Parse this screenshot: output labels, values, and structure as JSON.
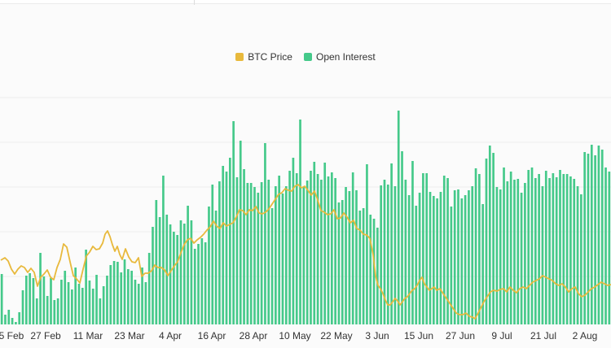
{
  "chart_data": {
    "type": "bar+line",
    "legend": [
      {
        "label": "BTC Price",
        "color": "#e8b93c"
      },
      {
        "label": "Open Interest",
        "color": "#45c98a"
      }
    ],
    "x_tick_labels": [
      "5 Feb",
      "27 Feb",
      "11 Mar",
      "23 Mar",
      "4 Apr",
      "16 Apr",
      "28 Apr",
      "10 May",
      "22 May",
      "3 Jun",
      "15 Jun",
      "27 Jun",
      "9 Jul",
      "21 Jul",
      "2 Aug"
    ],
    "series": [
      {
        "name": "Open Interest",
        "kind": "bar",
        "color": "#45c98a",
        "values": [
          62,
          12,
          18,
          8,
          3,
          15,
          42,
          60,
          63,
          57,
          32,
          88,
          59,
          35,
          57,
          30,
          32,
          55,
          66,
          52,
          43,
          70,
          50,
          45,
          92,
          54,
          44,
          61,
          32,
          47,
          60,
          73,
          78,
          77,
          64,
          80,
          68,
          66,
          55,
          50,
          70,
          52,
          88,
          120,
          153,
          132,
          183,
          135,
          123,
          114,
          110,
          128,
          124,
          146,
          128,
          93,
          99,
          106,
          101,
          145,
          172,
          140,
          176,
          195,
          188,
          205,
          250,
          181,
          226,
          191,
          174,
          174,
          169,
          162,
          175,
          223,
          178,
          143,
          170,
          183,
          161,
          170,
          189,
          205,
          186,
          252,
          169,
          177,
          189,
          200,
          185,
          178,
          199,
          182,
          187,
          180,
          150,
          153,
          169,
          164,
          187,
          165,
          140,
          143,
          197,
          135,
          130,
          119,
          171,
          178,
          172,
          198,
          170,
          263,
          213,
          178,
          159,
          201,
          146,
          162,
          186,
          186,
          163,
          158,
          155,
          163,
          183,
          180,
          145,
          165,
          166,
          155,
          159,
          165,
          170,
          192,
          185,
          148,
          204,
          220,
          211,
          169,
          166,
          193,
          176,
          188,
          178,
          179,
          162,
          174,
          190,
          193,
          180,
          185,
          170,
          189,
          180,
          186,
          181,
          190,
          185,
          185,
          182,
          179,
          170,
          160,
          212,
          210,
          221,
          208,
          220,
          215,
          193,
          188
        ]
      },
      {
        "name": "BTC Price",
        "kind": "line",
        "color": "#e8b93c",
        "points": [
          [
            1,
            79
          ],
          [
            6,
            82
          ],
          [
            10,
            78
          ],
          [
            14,
            68
          ],
          [
            18,
            62
          ],
          [
            22,
            68
          ],
          [
            26,
            72
          ],
          [
            30,
            70
          ],
          [
            34,
            64
          ],
          [
            38,
            69
          ],
          [
            42,
            64
          ],
          [
            46,
            47
          ],
          [
            50,
            58
          ],
          [
            54,
            62
          ],
          [
            58,
            67
          ],
          [
            62,
            58
          ],
          [
            66,
            55
          ],
          [
            70,
            70
          ],
          [
            74,
            80
          ],
          [
            78,
            99
          ],
          [
            82,
            95
          ],
          [
            86,
            77
          ],
          [
            90,
            60
          ],
          [
            94,
            56
          ],
          [
            98,
            51
          ],
          [
            102,
            68
          ],
          [
            106,
            84
          ],
          [
            110,
            89
          ],
          [
            114,
            96
          ],
          [
            118,
            92
          ],
          [
            122,
            93
          ],
          [
            126,
            100
          ],
          [
            129,
            111
          ],
          [
            132,
            115
          ],
          [
            135,
            108
          ],
          [
            138,
            98
          ],
          [
            141,
            90
          ],
          [
            144,
            96
          ],
          [
            147,
            86
          ],
          [
            150,
            80
          ],
          [
            154,
            93
          ],
          [
            158,
            83
          ],
          [
            162,
            77
          ],
          [
            166,
            76
          ],
          [
            170,
            82
          ],
          [
            174,
            59
          ],
          [
            178,
            63
          ],
          [
            182,
            63
          ],
          [
            186,
            66
          ],
          [
            190,
            73
          ],
          [
            194,
            70
          ],
          [
            198,
            70
          ],
          [
            202,
            67
          ],
          [
            206,
            60
          ],
          [
            210,
            66
          ],
          [
            214,
            72
          ],
          [
            218,
            77
          ],
          [
            222,
            88
          ],
          [
            226,
            98
          ],
          [
            230,
            104
          ],
          [
            234,
            106
          ],
          [
            238,
            100
          ],
          [
            242,
            104
          ],
          [
            246,
            107
          ],
          [
            250,
            111
          ],
          [
            254,
            116
          ],
          [
            258,
            120
          ],
          [
            262,
            127
          ],
          [
            266,
            121
          ],
          [
            270,
            118
          ],
          [
            274,
            125
          ],
          [
            278,
            121
          ],
          [
            282,
            123
          ],
          [
            286,
            125
          ],
          [
            290,
            132
          ],
          [
            294,
            141
          ],
          [
            298,
            140
          ],
          [
            302,
            135
          ],
          [
            306,
            141
          ],
          [
            310,
            140
          ],
          [
            314,
            145
          ],
          [
            318,
            137
          ],
          [
            322,
            136
          ],
          [
            326,
            138
          ],
          [
            330,
            142
          ],
          [
            334,
            148
          ],
          [
            338,
            154
          ],
          [
            342,
            160
          ],
          [
            346,
            162
          ],
          [
            350,
            167
          ],
          [
            354,
            165
          ],
          [
            358,
            164
          ],
          [
            362,
            170
          ],
          [
            366,
            172
          ],
          [
            370,
            168
          ],
          [
            374,
            170
          ],
          [
            378,
            165
          ],
          [
            382,
            159
          ],
          [
            386,
            164
          ],
          [
            390,
            153
          ],
          [
            394,
            140
          ],
          [
            398,
            138
          ],
          [
            402,
            135
          ],
          [
            406,
            136
          ],
          [
            410,
            141
          ],
          [
            414,
            130
          ],
          [
            418,
            131
          ],
          [
            422,
            137
          ],
          [
            426,
            132
          ],
          [
            430,
            125
          ],
          [
            434,
            128
          ],
          [
            438,
            118
          ],
          [
            442,
            116
          ],
          [
            446,
            111
          ],
          [
            450,
            110
          ],
          [
            454,
            106
          ],
          [
            458,
            86
          ],
          [
            461,
            60
          ],
          [
            464,
            48
          ],
          [
            467,
            44
          ],
          [
            470,
            38
          ],
          [
            473,
            30
          ],
          [
            476,
            24
          ],
          [
            479,
            24
          ],
          [
            482,
            28
          ],
          [
            485,
            32
          ],
          [
            488,
            29
          ],
          [
            491,
            24
          ],
          [
            494,
            28
          ],
          [
            497,
            32
          ],
          [
            500,
            34
          ],
          [
            503,
            38
          ],
          [
            506,
            42
          ],
          [
            509,
            44
          ],
          [
            512,
            48
          ],
          [
            515,
            54
          ],
          [
            518,
            58
          ],
          [
            521,
            50
          ],
          [
            524,
            46
          ],
          [
            527,
            42
          ],
          [
            530,
            44
          ],
          [
            533,
            46
          ],
          [
            536,
            42
          ],
          [
            540,
            44
          ],
          [
            544,
            38
          ],
          [
            548,
            32
          ],
          [
            552,
            26
          ],
          [
            556,
            20
          ],
          [
            560,
            14
          ],
          [
            564,
            12
          ],
          [
            568,
            12
          ],
          [
            572,
            14
          ],
          [
            576,
            10
          ],
          [
            580,
            9
          ],
          [
            583,
            7
          ],
          [
            586,
            12
          ],
          [
            590,
            20
          ],
          [
            594,
            28
          ],
          [
            598,
            34
          ],
          [
            602,
            40
          ],
          [
            606,
            42
          ],
          [
            610,
            41
          ],
          [
            614,
            43
          ],
          [
            618,
            44
          ],
          [
            622,
            40
          ],
          [
            626,
            46
          ],
          [
            630,
            42
          ],
          [
            634,
            39
          ],
          [
            638,
            44
          ],
          [
            642,
            46
          ],
          [
            646,
            44
          ],
          [
            650,
            48
          ],
          [
            654,
            52
          ],
          [
            658,
            54
          ],
          [
            662,
            56
          ],
          [
            666,
            60
          ],
          [
            670,
            58
          ],
          [
            674,
            56
          ],
          [
            678,
            54
          ],
          [
            682,
            50
          ],
          [
            686,
            48
          ],
          [
            690,
            50
          ],
          [
            694,
            46
          ],
          [
            698,
            40
          ],
          [
            702,
            44
          ],
          [
            706,
            46
          ],
          [
            710,
            38
          ],
          [
            714,
            34
          ],
          [
            718,
            36
          ],
          [
            722,
            40
          ],
          [
            726,
            44
          ],
          [
            730,
            46
          ],
          [
            734,
            49
          ],
          [
            738,
            52
          ],
          [
            742,
            50
          ],
          [
            746,
            48
          ],
          [
            750,
            49
          ]
        ]
      }
    ],
    "grid": "horizontal",
    "legend_placement": "top-center"
  }
}
